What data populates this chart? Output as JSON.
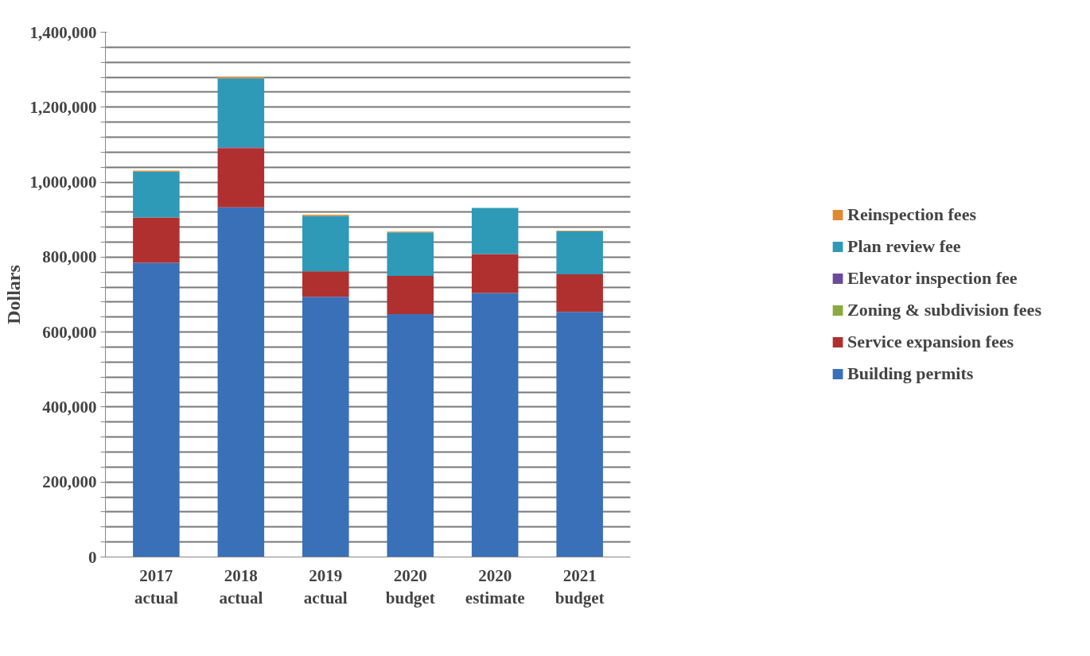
{
  "chart_data": {
    "type": "bar",
    "stacked": true,
    "ylabel": "Dollars",
    "categories": [
      "2017\nactual",
      "2018\nactual",
      "2019\nactual",
      "2020\nbudget",
      "2020\nestimate",
      "2021\nbudget"
    ],
    "series": [
      {
        "name": "Building permits",
        "color": "#3a70b8",
        "values": [
          785000,
          933000,
          694000,
          648000,
          704000,
          654000
        ]
      },
      {
        "name": "Service expansion fees",
        "color": "#b03030",
        "values": [
          121000,
          158000,
          68000,
          102000,
          104000,
          100000
        ]
      },
      {
        "name": "Zoning & subdivision fees",
        "color": "#8aaa40",
        "values": [
          0,
          0,
          0,
          0,
          0,
          0
        ]
      },
      {
        "name": "Elevator inspection fee",
        "color": "#6a4a9a",
        "values": [
          0,
          2000,
          0,
          0,
          0,
          0
        ]
      },
      {
        "name": "Plan review fee",
        "color": "#2e9ab8",
        "values": [
          122000,
          184000,
          148000,
          116000,
          123000,
          115000
        ]
      },
      {
        "name": "Reinspection fees",
        "color": "#e08a30",
        "values": [
          3000,
          3000,
          3000,
          2000,
          0,
          2000
        ]
      }
    ],
    "ylim": [
      0,
      1400000
    ],
    "yticks": [
      {
        "value": 0,
        "label": "0"
      },
      {
        "value": 40000,
        "label": null
      },
      {
        "value": 80000,
        "label": null
      },
      {
        "value": 120000,
        "label": null
      },
      {
        "value": 160000,
        "label": null
      },
      {
        "value": 200000,
        "label": "200,000"
      },
      {
        "value": 240000,
        "label": null
      },
      {
        "value": 280000,
        "label": null
      },
      {
        "value": 320000,
        "label": null
      },
      {
        "value": 360000,
        "label": null
      },
      {
        "value": 400000,
        "label": "400,000"
      },
      {
        "value": 440000,
        "label": null
      },
      {
        "value": 480000,
        "label": null
      },
      {
        "value": 520000,
        "label": null
      },
      {
        "value": 560000,
        "label": null
      },
      {
        "value": 600000,
        "label": "600,000"
      },
      {
        "value": 640000,
        "label": null
      },
      {
        "value": 680000,
        "label": null
      },
      {
        "value": 720000,
        "label": null
      },
      {
        "value": 760000,
        "label": null
      },
      {
        "value": 800000,
        "label": "800,000"
      },
      {
        "value": 840000,
        "label": null
      },
      {
        "value": 880000,
        "label": null
      },
      {
        "value": 920000,
        "label": null
      },
      {
        "value": 960000,
        "label": null
      },
      {
        "value": 1000000,
        "label": "1,000,000"
      },
      {
        "value": 1040000,
        "label": null
      },
      {
        "value": 1080000,
        "label": null
      },
      {
        "value": 1120000,
        "label": null
      },
      {
        "value": 1160000,
        "label": null
      },
      {
        "value": 1200000,
        "label": "1,200,000"
      },
      {
        "value": 1240000,
        "label": null
      },
      {
        "value": 1280000,
        "label": null
      },
      {
        "value": 1320000,
        "label": null
      },
      {
        "value": 1360000,
        "label": null
      },
      {
        "value": 1400000,
        "label": "1,400,000"
      }
    ],
    "grid": "y",
    "legend": "right"
  }
}
